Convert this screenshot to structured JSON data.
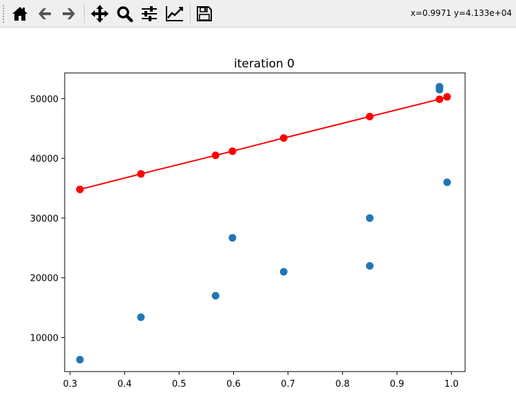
{
  "toolbar": {
    "buttons": [
      {
        "id": "home",
        "icon": "home-icon"
      },
      {
        "id": "back",
        "icon": "arrow-left-icon"
      },
      {
        "id": "forward",
        "icon": "arrow-right-icon"
      },
      {
        "id": "pan",
        "icon": "move-icon"
      },
      {
        "id": "zoom",
        "icon": "search-icon"
      },
      {
        "id": "configure",
        "icon": "sliders-icon"
      },
      {
        "id": "edit-axes",
        "icon": "chart-line-icon"
      },
      {
        "id": "save",
        "icon": "floppy-icon"
      }
    ],
    "coordinates": "x=0.9971  y=4.133e+04"
  },
  "chart_data": {
    "type": "scatter",
    "title": "iteration 0",
    "xlabel": "",
    "ylabel": "",
    "xlim": [
      0.29,
      1.025
    ],
    "ylim": [
      4300,
      54300
    ],
    "xticks": [
      0.3,
      0.4,
      0.5,
      0.6,
      0.7,
      0.8,
      0.9,
      1.0
    ],
    "xtick_labels": [
      "0.3",
      "0.4",
      "0.5",
      "0.6",
      "0.7",
      "0.8",
      "0.9",
      "1.0"
    ],
    "yticks": [
      10000,
      20000,
      30000,
      40000,
      50000
    ],
    "ytick_labels": [
      "10000",
      "20000",
      "30000",
      "40000",
      "50000"
    ],
    "grid": false,
    "series": [
      {
        "kind": "scatter",
        "color": "#1f77b4",
        "points": [
          {
            "x": 0.318,
            "y": 6300
          },
          {
            "x": 0.43,
            "y": 13400
          },
          {
            "x": 0.567,
            "y": 17000
          },
          {
            "x": 0.598,
            "y": 26700
          },
          {
            "x": 0.692,
            "y": 21000
          },
          {
            "x": 0.85,
            "y": 30000
          },
          {
            "x": 0.85,
            "y": 22000
          },
          {
            "x": 0.978,
            "y": 52000
          },
          {
            "x": 0.978,
            "y": 51500
          },
          {
            "x": 0.992,
            "y": 36000
          }
        ]
      },
      {
        "kind": "line-markers",
        "color": "#ff0000",
        "points": [
          {
            "x": 0.318,
            "y": 34800
          },
          {
            "x": 0.43,
            "y": 37400
          },
          {
            "x": 0.567,
            "y": 40500
          },
          {
            "x": 0.598,
            "y": 41200
          },
          {
            "x": 0.692,
            "y": 43400
          },
          {
            "x": 0.85,
            "y": 47000
          },
          {
            "x": 0.978,
            "y": 49900
          },
          {
            "x": 0.992,
            "y": 50300
          }
        ]
      }
    ]
  }
}
